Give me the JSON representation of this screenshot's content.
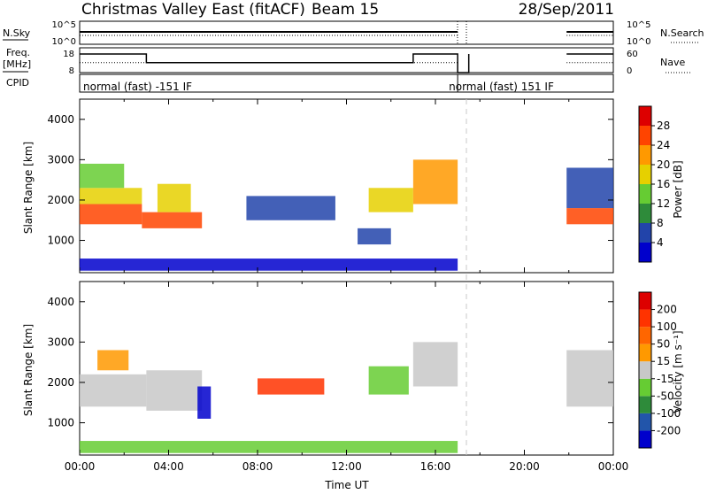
{
  "header": {
    "title": "Christmas Valley East (fitACF)",
    "beam": "Beam 15",
    "date": "28/Sep/2011"
  },
  "chart_data": [
    {
      "id": "noise",
      "type": "line",
      "left_label": "N.Sky",
      "right_label": "N.Search",
      "y_tick_labels": [
        "10^5",
        "10^0"
      ],
      "right_tick_labels": [
        "10^5",
        "10^0"
      ],
      "segments": [
        {
          "x_start": 0.0,
          "x_end": 17.0,
          "level": "high"
        },
        {
          "x_start": 21.9,
          "x_end": 24.0,
          "level": "high"
        }
      ]
    },
    {
      "id": "frequency",
      "type": "line",
      "left_label": "Freq.",
      "left_unit": "[MHz]",
      "right_label": "Nave",
      "y_tick_labels": [
        "18",
        "8"
      ],
      "right_tick_labels": [
        "60",
        "0"
      ],
      "ylim": [
        8,
        18
      ],
      "series": [
        {
          "x": [
            0,
            3,
            3,
            15,
            15,
            17,
            17,
            17.5,
            17.5
          ],
          "y": [
            15.5,
            15.5,
            12,
            12,
            15.5,
            15.5,
            8,
            8,
            15.5
          ]
        },
        {
          "x": [
            21.9,
            24
          ],
          "y": [
            15.5,
            15.5
          ]
        }
      ],
      "nave_level": 12
    },
    {
      "id": "cpid",
      "type": "table",
      "left_label": "CPID",
      "entries": [
        {
          "x_start": 0.0,
          "text": "normal (fast) -151 IF"
        },
        {
          "x_start": 17.0,
          "text": "normal (fast) 151 IF"
        }
      ]
    },
    {
      "id": "power",
      "type": "heatmap",
      "ylabel": "Slant Range [km]",
      "y_ticks": [
        1000,
        2000,
        3000,
        4000
      ],
      "ylim": [
        200,
        4500
      ],
      "xlim": [
        0,
        24
      ],
      "colorbar": {
        "label": "Power [dB]",
        "ticks": [
          "4",
          "8",
          "12",
          "16",
          "20",
          "24",
          "28"
        ],
        "colors": [
          "#0000cc",
          "#2244aa",
          "#2e8b3a",
          "#66cc33",
          "#e6d000",
          "#ff9900",
          "#ff4400",
          "#dd0000"
        ]
      },
      "echo_regions": [
        {
          "x0": 0.0,
          "x1": 2.8,
          "y0": 1400,
          "y1": 1900,
          "color": "#ff4400"
        },
        {
          "x0": 0.0,
          "x1": 2.8,
          "y0": 1900,
          "y1": 2300,
          "color": "#e6d000"
        },
        {
          "x0": 0.0,
          "x1": 2.0,
          "y0": 2300,
          "y1": 2900,
          "color": "#66cc33"
        },
        {
          "x0": 2.8,
          "x1": 5.5,
          "y0": 1300,
          "y1": 1700,
          "color": "#ff4400"
        },
        {
          "x0": 3.5,
          "x1": 5.0,
          "y0": 1700,
          "y1": 2400,
          "color": "#e6d000"
        },
        {
          "x0": 7.5,
          "x1": 11.5,
          "y0": 1500,
          "y1": 2100,
          "color": "#2244aa"
        },
        {
          "x0": 13.0,
          "x1": 15.0,
          "y0": 1700,
          "y1": 2300,
          "color": "#e6d000"
        },
        {
          "x0": 15.0,
          "x1": 17.0,
          "y0": 1900,
          "y1": 3000,
          "color": "#ff9900"
        },
        {
          "x0": 12.5,
          "x1": 14.0,
          "y0": 900,
          "y1": 1300,
          "color": "#2244aa"
        },
        {
          "x0": 21.9,
          "x1": 24.0,
          "y0": 1400,
          "y1": 1800,
          "color": "#ff4400"
        },
        {
          "x0": 21.9,
          "x1": 24.0,
          "y0": 1800,
          "y1": 2800,
          "color": "#2244aa"
        },
        {
          "x0": 0.0,
          "x1": 17.0,
          "y0": 250,
          "y1": 550,
          "color": "#0000cc"
        }
      ]
    },
    {
      "id": "velocity",
      "type": "heatmap",
      "xlabel": "Time UT",
      "ylabel": "Slant Range [km]",
      "x_ticks": [
        0,
        4,
        8,
        12,
        16,
        20,
        24
      ],
      "x_tick_labels": [
        "00:00",
        "04:00",
        "08:00",
        "12:00",
        "16:00",
        "20:00",
        "00:00"
      ],
      "y_ticks": [
        1000,
        2000,
        3000,
        4000
      ],
      "ylim": [
        200,
        4500
      ],
      "xlim": [
        0,
        24
      ],
      "colorbar": {
        "label": "Velocity [m s⁻¹]",
        "ticks": [
          "200",
          "100",
          "50",
          "15",
          "-15",
          "-50",
          "-100",
          "-200"
        ],
        "colors": [
          "#0000cc",
          "#2255aa",
          "#2e8b3a",
          "#66cc33",
          "#c8c8c8",
          "#ff9900",
          "#ff6600",
          "#ff3300",
          "#dd0000"
        ]
      },
      "echo_regions": [
        {
          "x0": 0.0,
          "x1": 3.0,
          "y0": 1400,
          "y1": 2200,
          "color": "#c8c8c8"
        },
        {
          "x0": 3.0,
          "x1": 5.5,
          "y0": 1300,
          "y1": 2300,
          "color": "#c8c8c8"
        },
        {
          "x0": 0.8,
          "x1": 2.2,
          "y0": 2300,
          "y1": 2800,
          "color": "#ff9900"
        },
        {
          "x0": 5.3,
          "x1": 5.9,
          "y0": 1100,
          "y1": 1900,
          "color": "#0000cc"
        },
        {
          "x0": 8.0,
          "x1": 11.0,
          "y0": 1700,
          "y1": 2100,
          "color": "#ff3300"
        },
        {
          "x0": 13.0,
          "x1": 14.8,
          "y0": 1700,
          "y1": 2400,
          "color": "#66cc33"
        },
        {
          "x0": 15.0,
          "x1": 17.0,
          "y0": 1900,
          "y1": 3000,
          "color": "#c8c8c8"
        },
        {
          "x0": 21.9,
          "x1": 24.0,
          "y0": 1400,
          "y1": 2800,
          "color": "#c8c8c8"
        },
        {
          "x0": 0.0,
          "x1": 17.0,
          "y0": 250,
          "y1": 550,
          "color": "#66cc33"
        }
      ]
    }
  ]
}
